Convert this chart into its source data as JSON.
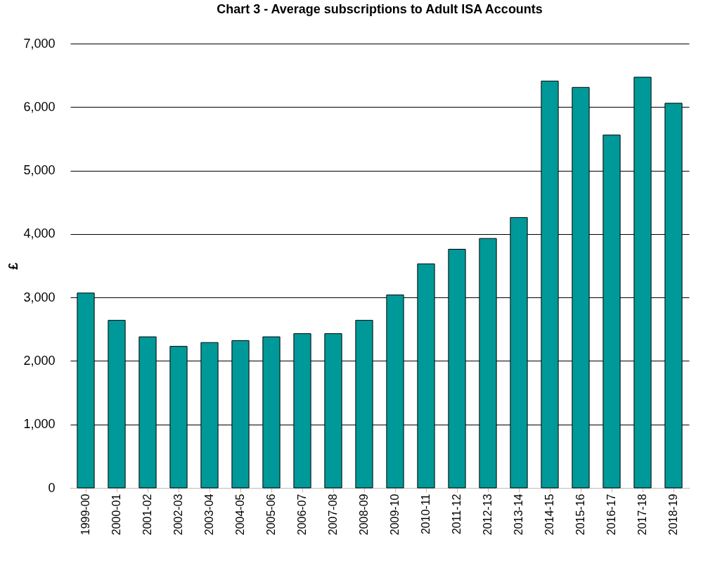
{
  "chart_data": {
    "type": "bar",
    "title": "Chart 3 - Average subscriptions to Adult ISA Accounts",
    "ylabel": "£",
    "categories": [
      "1999-00",
      "2000-01",
      "2001-02",
      "2002-03",
      "2003-04",
      "2004-05",
      "2005-06",
      "2006-07",
      "2007-08",
      "2008-09",
      "2009-10",
      "2010-11",
      "2011-12",
      "2012-13",
      "2013-14",
      "2014-15",
      "2015-16",
      "2016-17",
      "2017-18",
      "2018-19"
    ],
    "values": [
      3070,
      2640,
      2380,
      2230,
      2290,
      2320,
      2380,
      2430,
      2430,
      2640,
      3040,
      3530,
      3760,
      3930,
      4260,
      6410,
      6310,
      5560,
      6470,
      6060
    ],
    "color": "#009999",
    "ylim": [
      0,
      7000
    ],
    "yticks": [
      {
        "value": 0,
        "label": "0"
      },
      {
        "value": 1000,
        "label": "1,000"
      },
      {
        "value": 2000,
        "label": "2,000"
      },
      {
        "value": 3000,
        "label": "3,000"
      },
      {
        "value": 4000,
        "label": "4,000"
      },
      {
        "value": 5000,
        "label": "5,000"
      },
      {
        "value": 6000,
        "label": "6,000"
      },
      {
        "value": 7000,
        "label": "7,000"
      }
    ],
    "grid": "y"
  }
}
